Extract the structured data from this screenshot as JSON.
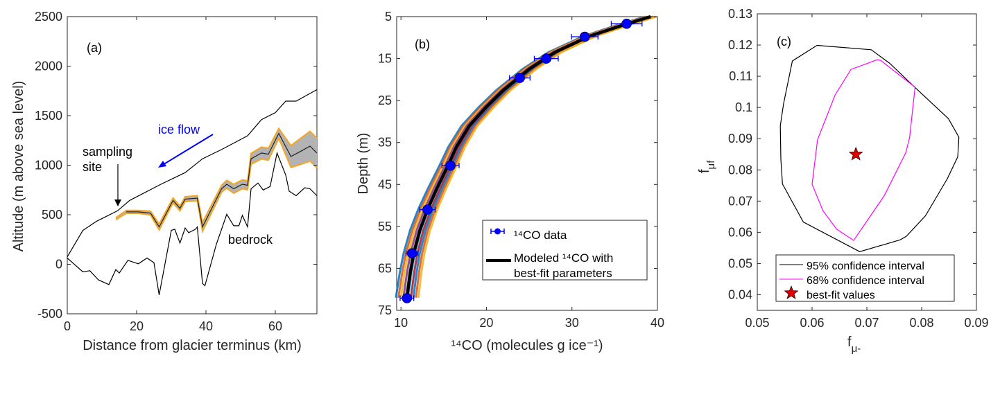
{
  "colors": {
    "ice_flow": "#0000ff",
    "band_fill": "#b3b3b3",
    "band_edge": "#f5a623",
    "data_marker": "#0000ff",
    "ci95": "#000000",
    "ci68": "#ff00ff",
    "star": "#e00000",
    "ensemble": [
      "#0072bd",
      "#d95319",
      "#edb120",
      "#7e2f8e",
      "#77ac30",
      "#4dbeee",
      "#a2142f"
    ]
  },
  "chart_data": [
    {
      "type": "line",
      "panel_label": "(a)",
      "xlabel": "Distance from glacier terminus (km)",
      "ylabel": "Altitude (m above sea level)",
      "xlim": [
        0,
        72
      ],
      "ylim": [
        -500,
        2500
      ],
      "xticks": [
        0,
        20,
        40,
        60
      ],
      "yticks": [
        -500,
        0,
        500,
        1000,
        1500,
        2000,
        2500
      ],
      "annotations": {
        "ice_flow": "ice flow",
        "sampling_1": "sampling",
        "sampling_2": "site",
        "bedrock": "bedrock"
      },
      "series": [
        {
          "role": "ice surface",
          "x": [
            0,
            4.5,
            8.5,
            14.5,
            18,
            27,
            34,
            39,
            44.5,
            52,
            56,
            60,
            63,
            66,
            72
          ],
          "y": [
            75,
            342,
            435,
            540,
            645,
            808,
            925,
            1065,
            1158,
            1297,
            1460,
            1530,
            1647,
            1647,
            1763
          ]
        },
        {
          "role": "bedrock",
          "x": [
            0,
            4.5,
            6.5,
            9,
            12,
            14,
            15,
            17.5,
            20.5,
            23,
            25,
            26.5,
            30,
            31,
            32.5,
            34,
            35,
            37,
            37.5,
            39,
            39.7,
            43,
            46,
            48,
            49.5,
            50.5,
            52,
            53,
            55,
            56.5,
            58.5,
            60.5,
            63,
            64,
            66,
            68.5,
            70,
            72
          ],
          "y": [
            63,
            -77,
            -65,
            -158,
            -205,
            -54,
            -88,
            40,
            5,
            63,
            16,
            -310,
            342,
            354,
            214,
            366,
            319,
            354,
            377,
            -193,
            -217,
            203,
            505,
            389,
            389,
            494,
            377,
            762,
            820,
            750,
            785,
            1123,
            901,
            738,
            692,
            773,
            762,
            692
          ]
        },
        {
          "role": "modeled bed with uncertainty band",
          "x": [
            14,
            17,
            20.5,
            24,
            26.5,
            30.5,
            32.5,
            34,
            37.5,
            39,
            44.5,
            46,
            48,
            50.5,
            52,
            53,
            56,
            58,
            61,
            64.5,
            67,
            70,
            72
          ],
          "y": [
            459,
            529,
            529,
            517,
            377,
            645,
            564,
            657,
            668,
            377,
            762,
            808,
            762,
            808,
            797,
            1064,
            1123,
            1111,
            1321,
            1088,
            1134,
            1192,
            1123
          ],
          "uncertainty": [
            10,
            15,
            15,
            20,
            30,
            25,
            25,
            25,
            25,
            45,
            35,
            40,
            45,
            45,
            45,
            55,
            60,
            60,
            50,
            110,
            130,
            150,
            150
          ]
        }
      ]
    },
    {
      "type": "scatter",
      "panel_label": "(b)",
      "xlabel": "¹⁴CO (molecules g ice⁻¹)",
      "ylabel": "Depth (m)",
      "xlim": [
        9.5,
        40
      ],
      "ylim": [
        75,
        5
      ],
      "y_reversed": true,
      "xticks": [
        10,
        20,
        30,
        40
      ],
      "yticks": [
        5,
        15,
        25,
        35,
        45,
        55,
        65,
        75
      ],
      "legend": [
        "¹⁴CO data",
        "Modeled ¹⁴CO with",
        "best-fit parameters"
      ],
      "legend_position": "bottom-right",
      "series": [
        {
          "name": "¹⁴CO data",
          "x": [
            36.4,
            31.5,
            27.0,
            23.9,
            15.8,
            13.1,
            11.3,
            10.7
          ],
          "y": [
            6.7,
            9.8,
            15.0,
            19.6,
            40.5,
            51.0,
            61.4,
            72.1
          ],
          "xerr": [
            1.8,
            1.55,
            1.4,
            1.2,
            1.0,
            0.9,
            0.7,
            0.8
          ]
        },
        {
          "name": "Modeled ¹⁴CO with best-fit parameters",
          "x": [
            39.2,
            36,
            32,
            28,
            25,
            22,
            20,
            18,
            16.5,
            15.5,
            14.2,
            13.1,
            12.2,
            11.5,
            11.1,
            10.7
          ],
          "y": [
            5,
            7,
            9.7,
            13.5,
            17.5,
            22.5,
            26.5,
            31,
            36,
            40.5,
            46,
            51,
            56,
            61.4,
            66,
            72
          ]
        }
      ]
    },
    {
      "type": "line",
      "panel_label": "(c)",
      "xlabel": {
        "base": "f",
        "sub": "μ-"
      },
      "ylabel": {
        "base": "f",
        "sub": "μf"
      },
      "xlim": [
        0.05,
        0.09
      ],
      "ylim": [
        0.035,
        0.13
      ],
      "xticks": [
        0.05,
        0.06,
        0.07,
        0.08,
        0.09
      ],
      "yticks": [
        0.04,
        0.05,
        0.06,
        0.07,
        0.08,
        0.09,
        0.1,
        0.11,
        0.12,
        0.13
      ],
      "legend": [
        "95% confidence interval",
        "68% confidence interval",
        "best-fit values"
      ],
      "legend_position": "bottom",
      "series": [
        {
          "name": "95% confidence interval",
          "x": [
            0.0609,
            0.0708,
            0.0742,
            0.0788,
            0.0849,
            0.0868,
            0.0866,
            0.0847,
            0.0807,
            0.0772,
            0.0761,
            0.0687,
            0.0584,
            0.0546,
            0.0543,
            0.0542,
            0.0548,
            0.0564,
            0.0609
          ],
          "y": [
            0.1199,
            0.1185,
            0.1141,
            0.1064,
            0.0964,
            0.0905,
            0.0842,
            0.0772,
            0.0653,
            0.0587,
            0.0576,
            0.0538,
            0.0633,
            0.0755,
            0.0834,
            0.0941,
            0.1012,
            0.1149,
            0.1199
          ]
        },
        {
          "name": "68% confidence interval",
          "x": [
            0.0719,
            0.0725,
            0.0788,
            0.0778,
            0.0771,
            0.0732,
            0.0676,
            0.0645,
            0.062,
            0.06,
            0.061,
            0.0642,
            0.0671,
            0.0719
          ],
          "y": [
            0.1153,
            0.1151,
            0.1065,
            0.0903,
            0.0855,
            0.0718,
            0.0574,
            0.061,
            0.0669,
            0.0754,
            0.0897,
            0.104,
            0.1122,
            0.1153
          ]
        },
        {
          "name": "best-fit values",
          "x": [
            0.068
          ],
          "y": [
            0.085
          ]
        }
      ]
    }
  ]
}
